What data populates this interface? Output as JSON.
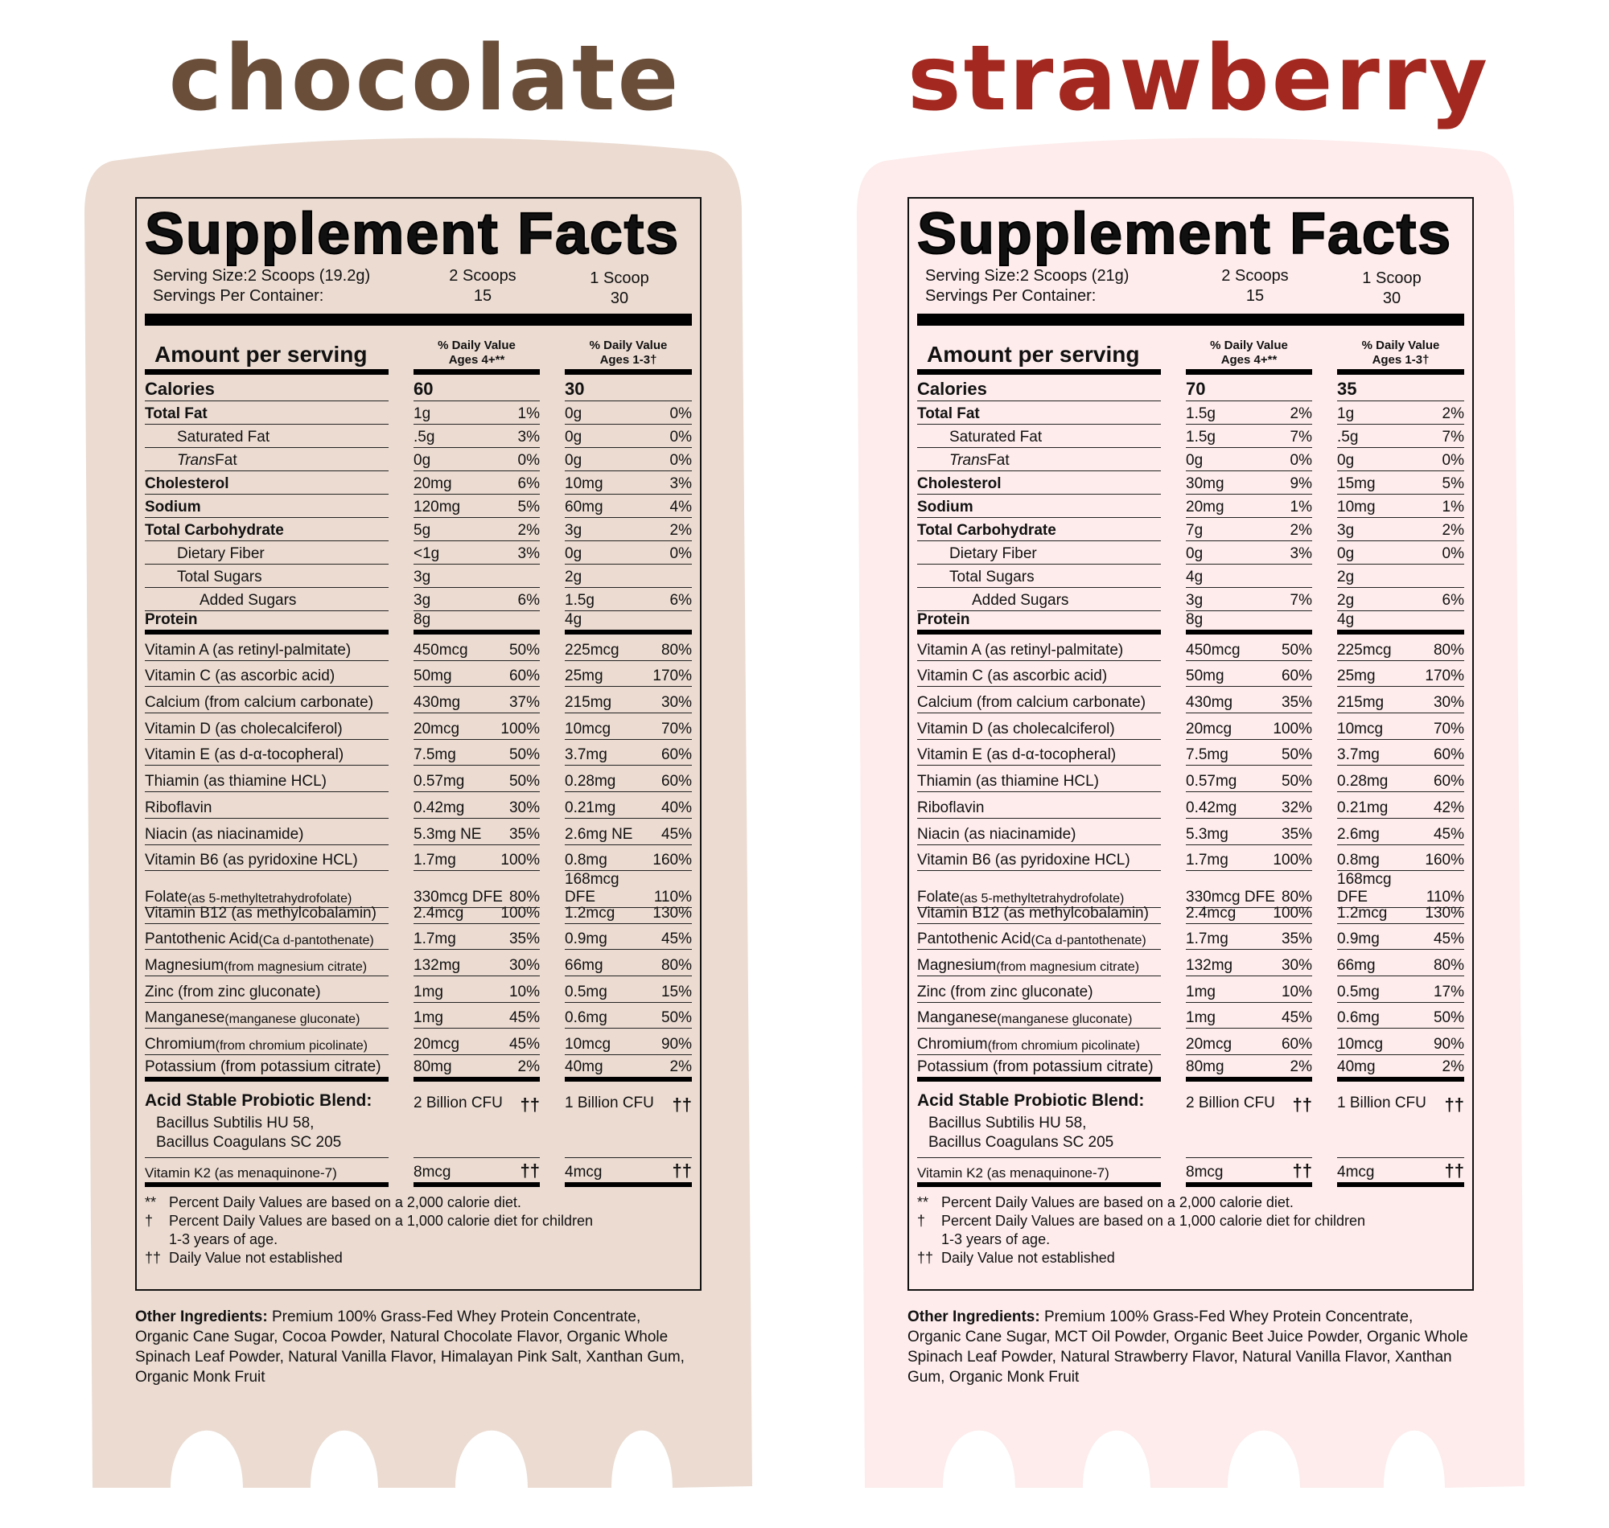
{
  "colors": {
    "chocolate_title": "#6a4e3a",
    "chocolate_bg": "#ebdbd1",
    "strawberry_title": "#a3281f",
    "strawberry_bg": "#fdeceb"
  },
  "labels": [
    {
      "flavor": "chocolate",
      "title": "Supplement Facts",
      "serving_size": "Serving Size:2 Scoops (19.2g)",
      "servings_per_container": "Servings Per Container:",
      "col1_serving": "2 Scoops",
      "col1_count": "15",
      "col2_serving": "1 Scoop",
      "col2_count": "30",
      "amount_header": "Amount per serving",
      "dv1": [
        "% Daily Value",
        "Ages 4+**"
      ],
      "dv2": [
        "% Daily Value",
        "Ages 1-3†"
      ],
      "calories": {
        "name": "Calories",
        "a1": "60",
        "a2": "30"
      },
      "macros": [
        {
          "name": "Total Fat",
          "bold": true,
          "level": 0,
          "a1": "1g",
          "p1": "1%",
          "a2": "0g",
          "p2": "0%"
        },
        {
          "name": "Saturated Fat",
          "level": 1,
          "a1": ".5g",
          "p1": "3%",
          "a2": "0g",
          "p2": "0%"
        },
        {
          "italic": "Trans",
          "name": " Fat",
          "level": 1,
          "a1": "0g",
          "p1": "0%",
          "a2": "0g",
          "p2": "0%"
        },
        {
          "name": "Cholesterol",
          "bold": true,
          "level": 0,
          "a1": "20mg",
          "p1": "6%",
          "a2": "10mg",
          "p2": "3%"
        },
        {
          "name": "Sodium",
          "bold": true,
          "level": 0,
          "a1": "120mg",
          "p1": "5%",
          "a2": "60mg",
          "p2": "4%"
        },
        {
          "name": "Total Carbohydrate",
          "bold": true,
          "level": 0,
          "a1": "5g",
          "p1": "2%",
          "a2": "3g",
          "p2": "2%"
        },
        {
          "name": "Dietary Fiber",
          "level": 1,
          "a1": "<1g",
          "p1": "3%",
          "a2": "0g",
          "p2": "0%"
        },
        {
          "name": "Total Sugars",
          "level": 1,
          "a1": "3g",
          "p1": "",
          "a2": "2g",
          "p2": ""
        },
        {
          "name": "Added Sugars",
          "level": 2,
          "a1": "3g",
          "p1": "6%",
          "a2": "1.5g",
          "p2": "6%"
        },
        {
          "name": "Protein",
          "bold": true,
          "level": 0,
          "a1": "8g",
          "p1": "",
          "a2": "4g",
          "p2": ""
        }
      ],
      "vitamins": [
        {
          "name": "Vitamin A (as retinyl-palmitate)",
          "a1": "450mcg",
          "p1": "50%",
          "a2": "225mcg",
          "p2": "80%"
        },
        {
          "name": "Vitamin C (as ascorbic acid)",
          "a1": "50mg",
          "p1": "60%",
          "a2": "25mg",
          "p2": "170%"
        },
        {
          "name": "Calcium (from calcium carbonate)",
          "a1": "430mg",
          "p1": "37%",
          "a2": "215mg",
          "p2": "30%"
        },
        {
          "name": "Vitamin D (as cholecalciferol)",
          "a1": "20mcg",
          "p1": "100%",
          "a2": "10mcg",
          "p2": "70%"
        },
        {
          "name": "Vitamin E (as d-α-tocopheral)",
          "a1": "7.5mg",
          "p1": "50%",
          "a2": "3.7mg",
          "p2": "60%"
        },
        {
          "name": "Thiamin (as thiamine HCL)",
          "a1": "0.57mg",
          "p1": "50%",
          "a2": "0.28mg",
          "p2": "60%"
        },
        {
          "name": "Riboflavin",
          "a1": "0.42mg",
          "p1": "30%",
          "a2": "0.21mg",
          "p2": "40%"
        },
        {
          "name": "Niacin (as niacinamide)",
          "a1": "5.3mg NE",
          "p1": "35%",
          "a2": "2.6mg NE",
          "p2": "45%"
        },
        {
          "name": "Vitamin B6 (as pyridoxine HCL)",
          "a1": "1.7mg",
          "p1": "100%",
          "a2": "0.8mg",
          "p2": "160%"
        },
        {
          "name": "Folate",
          "sub": " (as 5-methyltetrahydrofolate)",
          "a1": "330mcg DFE",
          "p1": "80%",
          "a2": "168mcg DFE",
          "p2": "110%"
        },
        {
          "name": "Vitamin B12 (as methylcobalamin)",
          "a1": "2.4mcg",
          "p1": "100%",
          "a2": "1.2mcg",
          "p2": "130%"
        },
        {
          "name": "Pantothenic Acid",
          "sub": " (Ca d-pantothenate)",
          "a1": "1.7mg",
          "p1": "35%",
          "a2": "0.9mg",
          "p2": "45%"
        },
        {
          "name": "Magnesium",
          "sub": " (from magnesium citrate)",
          "a1": "132mg",
          "p1": "30%",
          "a2": "66mg",
          "p2": "80%"
        },
        {
          "name": "Zinc (from zinc gluconate)",
          "a1": "1mg",
          "p1": "10%",
          "a2": "0.5mg",
          "p2": "15%"
        },
        {
          "name": "Manganese",
          "sub": " (manganese gluconate)",
          "a1": "1mg",
          "p1": "45%",
          "a2": "0.6mg",
          "p2": "50%"
        },
        {
          "name": "Chromium",
          "sub": " (from chromium picolinate)",
          "a1": "20mcg",
          "p1": "45%",
          "a2": "10mcg",
          "p2": "90%"
        },
        {
          "name": "Potassium (from potassium citrate)",
          "a1": "80mg",
          "p1": "2%",
          "a2": "40mg",
          "p2": "2%"
        }
      ],
      "probiotic": {
        "name": "Acid Stable Probiotic Blend:",
        "strains": [
          "Bacillus Subtilis HU 58,",
          "Bacillus Coagulans SC 205"
        ],
        "a1": "2 Billion CFU",
        "m1": "††",
        "a2": "1 Billion CFU",
        "m2": "††"
      },
      "k2": {
        "name": "Vitamin K2 (as menaquinone-7)",
        "a1": "8mcg",
        "m1": "††",
        "a2": "4mcg",
        "m2": "††"
      },
      "footnotes": [
        {
          "mark": "**",
          "text": "Percent Daily Values are based on a 2,000 calorie diet."
        },
        {
          "mark": "†",
          "text": "Percent Daily Values are based on a 1,000 calorie diet for children 1-3 years of age."
        },
        {
          "mark": "††",
          "text": "Daily Value not established"
        }
      ],
      "ingredients": {
        "label": "Other Ingredients:",
        "text": "Premium 100% Grass-Fed Whey Protein Concentrate, Organic Cane Sugar, Cocoa Powder, Natural Chocolate Flavor, Organic Whole Spinach Leaf Powder, Natural Vanilla Flavor, Himalayan Pink Salt, Xanthan Gum, Organic Monk Fruit"
      }
    },
    {
      "flavor": "strawberry",
      "title": "Supplement Facts",
      "serving_size": "Serving Size:2 Scoops (21g)",
      "servings_per_container": "Servings Per Container:",
      "col1_serving": "2 Scoops",
      "col1_count": "15",
      "col2_serving": "1 Scoop",
      "col2_count": "30",
      "amount_header": "Amount per serving",
      "dv1": [
        "% Daily Value",
        "Ages 4+**"
      ],
      "dv2": [
        "% Daily Value",
        "Ages 1-3†"
      ],
      "calories": {
        "name": "Calories",
        "a1": "70",
        "a2": "35"
      },
      "macros": [
        {
          "name": "Total Fat",
          "bold": true,
          "level": 0,
          "a1": "1.5g",
          "p1": "2%",
          "a2": "1g",
          "p2": "2%"
        },
        {
          "name": "Saturated Fat",
          "level": 1,
          "a1": "1.5g",
          "p1": "7%",
          "a2": ".5g",
          "p2": "7%"
        },
        {
          "italic": "Trans",
          "name": " Fat",
          "level": 1,
          "a1": "0g",
          "p1": "0%",
          "a2": "0g",
          "p2": "0%"
        },
        {
          "name": "Cholesterol",
          "bold": true,
          "level": 0,
          "a1": "30mg",
          "p1": "9%",
          "a2": "15mg",
          "p2": "5%"
        },
        {
          "name": "Sodium",
          "bold": true,
          "level": 0,
          "a1": "20mg",
          "p1": "1%",
          "a2": "10mg",
          "p2": "1%"
        },
        {
          "name": "Total Carbohydrate",
          "bold": true,
          "level": 0,
          "a1": "7g",
          "p1": "2%",
          "a2": "3g",
          "p2": "2%"
        },
        {
          "name": "Dietary Fiber",
          "level": 1,
          "a1": "0g",
          "p1": "3%",
          "a2": "0g",
          "p2": "0%"
        },
        {
          "name": "Total Sugars",
          "level": 1,
          "a1": "4g",
          "p1": "",
          "a2": "2g",
          "p2": ""
        },
        {
          "name": "Added Sugars",
          "level": 2,
          "a1": "3g",
          "p1": "7%",
          "a2": "2g",
          "p2": "6%"
        },
        {
          "name": "Protein",
          "bold": true,
          "level": 0,
          "a1": "8g",
          "p1": "",
          "a2": "4g",
          "p2": ""
        }
      ],
      "vitamins": [
        {
          "name": "Vitamin A (as retinyl-palmitate)",
          "a1": "450mcg",
          "p1": "50%",
          "a2": "225mcg",
          "p2": "80%"
        },
        {
          "name": "Vitamin C (as ascorbic acid)",
          "a1": "50mg",
          "p1": "60%",
          "a2": "25mg",
          "p2": "170%"
        },
        {
          "name": "Calcium (from calcium carbonate)",
          "a1": "430mg",
          "p1": "35%",
          "a2": "215mg",
          "p2": "30%"
        },
        {
          "name": "Vitamin D (as cholecalciferol)",
          "a1": "20mcg",
          "p1": "100%",
          "a2": "10mcg",
          "p2": "70%"
        },
        {
          "name": "Vitamin E (as d-α-tocopheral)",
          "a1": "7.5mg",
          "p1": "50%",
          "a2": "3.7mg",
          "p2": "60%"
        },
        {
          "name": "Thiamin (as thiamine HCL)",
          "a1": "0.57mg",
          "p1": "50%",
          "a2": "0.28mg",
          "p2": "60%"
        },
        {
          "name": "Riboflavin",
          "a1": "0.42mg",
          "p1": "32%",
          "a2": "0.21mg",
          "p2": "42%"
        },
        {
          "name": "Niacin (as niacinamide)",
          "a1": "5.3mg",
          "p1": "35%",
          "a2": "2.6mg",
          "p2": "45%"
        },
        {
          "name": "Vitamin B6 (as pyridoxine HCL)",
          "a1": "1.7mg",
          "p1": "100%",
          "a2": "0.8mg",
          "p2": "160%"
        },
        {
          "name": "Folate",
          "sub": " (as 5-methyltetrahydrofolate)",
          "a1": "330mcg DFE",
          "p1": "80%",
          "a2": "168mcg DFE",
          "p2": "110%"
        },
        {
          "name": "Vitamin B12 (as methylcobalamin)",
          "a1": "2.4mcg",
          "p1": "100%",
          "a2": "1.2mcg",
          "p2": "130%"
        },
        {
          "name": "Pantothenic Acid",
          "sub": " (Ca d-pantothenate)",
          "a1": "1.7mg",
          "p1": "35%",
          "a2": "0.9mg",
          "p2": "45%"
        },
        {
          "name": "Magnesium",
          "sub": " (from magnesium citrate)",
          "a1": "132mg",
          "p1": "30%",
          "a2": "66mg",
          "p2": "80%"
        },
        {
          "name": "Zinc (from zinc gluconate)",
          "a1": "1mg",
          "p1": "10%",
          "a2": "0.5mg",
          "p2": "17%"
        },
        {
          "name": "Manganese",
          "sub": " (manganese gluconate)",
          "a1": "1mg",
          "p1": "45%",
          "a2": "0.6mg",
          "p2": "50%"
        },
        {
          "name": "Chromium",
          "sub": " (from chromium picolinate)",
          "a1": "20mcg",
          "p1": "60%",
          "a2": "10mcg",
          "p2": "90%"
        },
        {
          "name": "Potassium (from potassium citrate)",
          "a1": "80mg",
          "p1": "2%",
          "a2": "40mg",
          "p2": "2%"
        }
      ],
      "probiotic": {
        "name": "Acid Stable Probiotic Blend:",
        "strains": [
          "Bacillus Subtilis HU 58,",
          "Bacillus Coagulans SC 205"
        ],
        "a1": "2 Billion CFU",
        "m1": "††",
        "a2": "1 Billion CFU",
        "m2": "††"
      },
      "k2": {
        "name": "Vitamin K2 (as menaquinone-7)",
        "a1": "8mcg",
        "m1": "††",
        "a2": "4mcg",
        "m2": "††"
      },
      "footnotes": [
        {
          "mark": "**",
          "text": "Percent Daily Values are based on a 2,000 calorie diet."
        },
        {
          "mark": "†",
          "text": "Percent Daily Values are based on a 1,000 calorie diet for children 1-3 years of age."
        },
        {
          "mark": "††",
          "text": "Daily Value not established"
        }
      ],
      "ingredients": {
        "label": "Other Ingredients:",
        "text": "Premium 100% Grass-Fed Whey Protein Concentrate, Organic Cane Sugar, MCT Oil Powder, Organic Beet Juice Powder, Organic Whole Spinach Leaf Powder, Natural Strawberry Flavor, Natural Vanilla Flavor, Xanthan Gum, Organic Monk Fruit"
      }
    }
  ]
}
